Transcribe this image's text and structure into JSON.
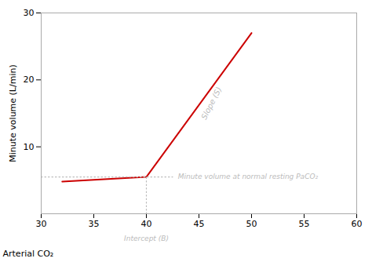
{
  "chart_data": {
    "type": "line",
    "xlabel": "Arterial CO₂",
    "ylabel": "Minute volume (L/min)",
    "xlim": [
      30,
      60
    ],
    "ylim": [
      0,
      30
    ],
    "xticks": [
      30,
      35,
      40,
      45,
      50,
      55,
      60
    ],
    "yticks": [
      10,
      20,
      30
    ],
    "grid": false,
    "series": [
      {
        "x": [
          32,
          40,
          50
        ],
        "values": [
          4.8,
          5.5,
          27
        ],
        "color": "#cc0000",
        "line_style": "solid"
      },
      {
        "x": [
          30,
          42.5
        ],
        "values": [
          5.5,
          5.5
        ],
        "color": "#bbbbbb",
        "line_style": "dotted"
      },
      {
        "x": [
          40,
          40
        ],
        "values": [
          0,
          5.5
        ],
        "color": "#bbbbbb",
        "line_style": "dotted"
      }
    ],
    "annotations": [
      {
        "text": "Slope (S)",
        "x": 46.2,
        "y": 16.5,
        "color": "#bbbbbb"
      },
      {
        "text": "Minute volume at normal resting PaCO₂",
        "x": 43.0,
        "y": 5.5,
        "color": "#bbbbbb"
      },
      {
        "text": "Intercept (B)",
        "x": 40,
        "color": "#bbbbbb"
      }
    ]
  }
}
